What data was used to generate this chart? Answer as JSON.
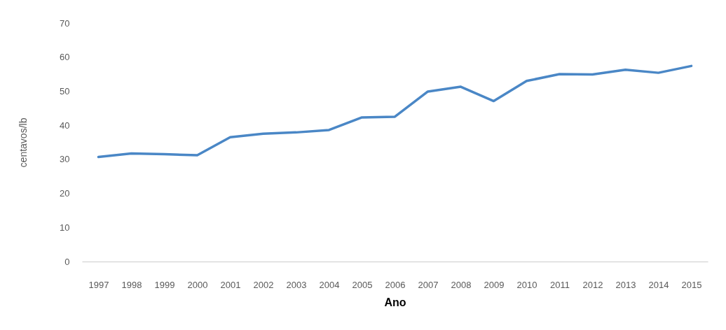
{
  "chart_data": {
    "type": "line",
    "xlabel": "Ano",
    "ylabel": "centavos/lb",
    "categories": [
      "1997",
      "1998",
      "1999",
      "2000",
      "2001",
      "2002",
      "2003",
      "2004",
      "2005",
      "2006",
      "2007",
      "2008",
      "2009",
      "2010",
      "2011",
      "2012",
      "2013",
      "2014",
      "2015"
    ],
    "series": [
      {
        "color": "#4a87c6",
        "values": [
          30.7,
          31.7,
          31.5,
          31.2,
          36.5,
          37.5,
          37.9,
          38.6,
          42.3,
          42.5,
          49.9,
          51.3,
          47.1,
          53.0,
          55.0,
          54.9,
          56.3,
          55.4,
          57.4
        ]
      }
    ],
    "ylim": [
      0,
      70
    ],
    "yticks": [
      0,
      10,
      20,
      30,
      40,
      50,
      60,
      70
    ],
    "grid": false
  }
}
